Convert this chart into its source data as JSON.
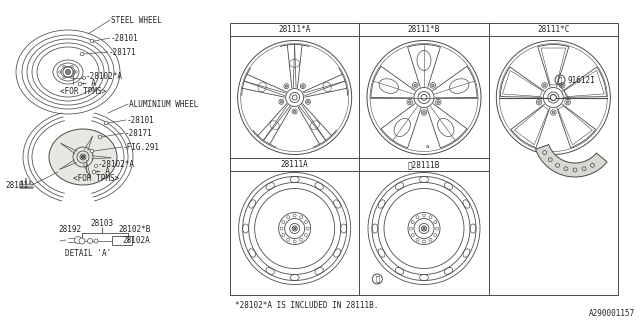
{
  "bg_color": "#f0f0ea",
  "line_color": "#4a4a4a",
  "text_color": "#222222",
  "diagram_ref": "A290001157",
  "note": "*28102*A IS INCLUDED IN 28111B.",
  "grid_labels_top": [
    "28111*A",
    "28111*B",
    "28111*C"
  ],
  "grid_labels_bot": [
    "28111A",
    "※28111B"
  ],
  "steel_wheel_label": "STEEL WHEEL",
  "alum_wheel_label": "ALUMINIUM WHEEL",
  "detail_label": "DETAIL 'A'",
  "right_part_label": "91612I",
  "font_size": 5.5,
  "font_size_med": 6.0
}
